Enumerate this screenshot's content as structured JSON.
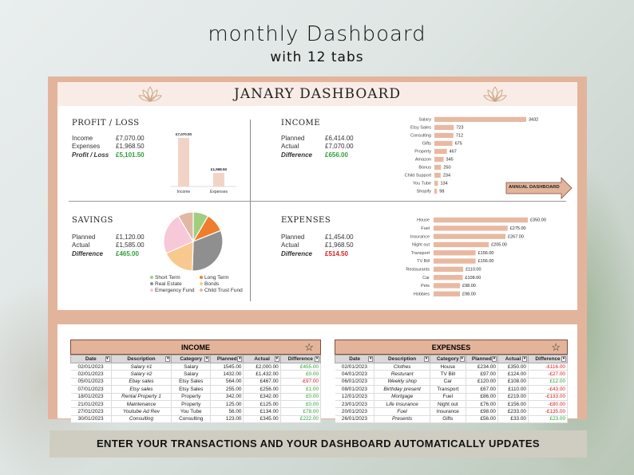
{
  "headline": "monthly Dashboard",
  "subline": "with 12 tabs",
  "dashboard_title": "JANARY DASHBOARD",
  "profit_loss": {
    "title": "PROFIT / LOSS",
    "rows": [
      {
        "label": "Income",
        "value": "£7,070.00"
      },
      {
        "label": "Expenses",
        "value": "£1,968.50"
      },
      {
        "label": "Profit / Loss",
        "value": "£5,101.50"
      }
    ],
    "chart": {
      "categories": [
        "Income",
        "Expenses"
      ],
      "values": [
        7070,
        1968.5
      ],
      "value_labels": [
        "£7,070.00",
        "£1,968.50"
      ],
      "color": "#f2d4c6"
    }
  },
  "income": {
    "title": "INCOME",
    "rows": [
      {
        "label": "Planned",
        "value": "£6,414.00"
      },
      {
        "label": "Actual",
        "value": "£7,070.00"
      },
      {
        "label": "Difference",
        "value": "£656.00"
      }
    ],
    "chart": {
      "categories": [
        "Salary",
        "Etsy Sales",
        "Consulting",
        "Gifts",
        "Property",
        "Amazon",
        "Bonus",
        "Child Support",
        "You Tube",
        "Shopify"
      ],
      "values": [
        3432,
        723,
        712,
        675,
        467,
        345,
        250,
        234,
        134,
        98
      ],
      "value_labels": [
        "3432",
        "723",
        "712",
        "675",
        "467",
        "345",
        "250",
        "234",
        "134",
        "98"
      ],
      "color": "#e8b9a1"
    },
    "annual_button": "ANNUAL DASHBOARD"
  },
  "savings": {
    "title": "SAVINGS",
    "rows": [
      {
        "label": "Planned",
        "value": "£1,120.00"
      },
      {
        "label": "Actual",
        "value": "£1,585.00"
      },
      {
        "label": "Difference",
        "value": "£465.00"
      }
    ],
    "chart": {
      "type": "pie",
      "slices": [
        {
          "name": "Short Term",
          "value": 8,
          "color": "#9ecf7e"
        },
        {
          "name": "Long Term",
          "value": 10,
          "color": "#ee7d2e"
        },
        {
          "name": "Real Estate",
          "value": 30,
          "color": "#8f8f8f"
        },
        {
          "name": "Bonds",
          "value": 17,
          "color": "#f8c98e"
        },
        {
          "name": "Emergency Fund",
          "value": 22,
          "color": "#f7c8d8"
        },
        {
          "name": "Child Trust Fund",
          "value": 8,
          "color": "#e0b8a5"
        }
      ],
      "legend": [
        "Short Term",
        "Long Term",
        "Real Estate",
        "Bonds",
        "Emergency Fund",
        "Child Trust Fund"
      ]
    }
  },
  "expenses": {
    "title": "EXPENSES",
    "rows": [
      {
        "label": "Planned",
        "value": "£1,454.00"
      },
      {
        "label": "Actual",
        "value": "£1,968.50"
      },
      {
        "label": "Difference",
        "value": "£514.50"
      }
    ],
    "chart": {
      "categories": [
        "House",
        "Fuel",
        "Insurance",
        "Night out",
        "Transport",
        "TV Bill",
        "Restaurants",
        "Car",
        "Pets",
        "Hobbies"
      ],
      "values": [
        350,
        275,
        267,
        205,
        156,
        156,
        110,
        108,
        98,
        98
      ],
      "value_labels": [
        "£350.00",
        "£275.00",
        "£267.00",
        "£205.00",
        "£156.00",
        "£156.00",
        "£110.00",
        "£108.00",
        "£98.00",
        "£98.00"
      ],
      "color": "#e8b9a1"
    }
  },
  "income_table": {
    "title": "INCOME",
    "headers": [
      "Date",
      "Description",
      "Category",
      "Planned",
      "Actual",
      "Difference"
    ],
    "rows": [
      [
        "02/01/2023",
        "Salary #1",
        "Salary",
        "1545.00",
        "£2,000.00",
        "£455.00"
      ],
      [
        "02/01/2023",
        "Salary #2",
        "Salary",
        "1432.00",
        "£1,432.00",
        "£0.00"
      ],
      [
        "05/01/2023",
        "Ebay sales",
        "Etsy Sales",
        "564.00",
        "£467.00",
        "-£97.00"
      ],
      [
        "07/01/2023",
        "Etsy sales",
        "Etsy Sales",
        "255.00",
        "£256.00",
        "£1.00"
      ],
      [
        "18/01/2023",
        "Rental Property 1",
        "Property",
        "342.00",
        "£342.00",
        "£0.00"
      ],
      [
        "21/01/2023",
        "Maintenance",
        "Property",
        "125.00",
        "£125.00",
        "£0.00"
      ],
      [
        "27/01/2023",
        "Youtube Ad Rev",
        "You Tube",
        "56.00",
        "£134.00",
        "£78.00"
      ],
      [
        "30/01/2023",
        "Consulting",
        "Consulting",
        "123.00",
        "£345.00",
        "£222.00"
      ]
    ]
  },
  "expenses_table": {
    "title": "EXPENSES",
    "headers": [
      "Date",
      "Description",
      "Category",
      "Planned",
      "Actual",
      "Difference"
    ],
    "rows": [
      [
        "02/01/2023",
        "Clothes",
        "House",
        "£234.00",
        "£350.00",
        "-£116.00"
      ],
      [
        "04/01/2023",
        "Resturant",
        "TV Bill",
        "£97.00",
        "£124.00",
        "-£27.00"
      ],
      [
        "06/01/2023",
        "Weekly shop",
        "Car",
        "£120.00",
        "£108.00",
        "£12.00"
      ],
      [
        "08/01/2023",
        "Birthday present",
        "Transport",
        "£67.00",
        "£110.00",
        "-£43.00"
      ],
      [
        "12/01/2023",
        "Mortgage",
        "Fuel",
        "£86.00",
        "£219.00",
        "-£133.00"
      ],
      [
        "23/01/2023",
        "Life Insurance",
        "Night out",
        "£76.00",
        "£156.00",
        "-£80.00"
      ],
      [
        "20/01/2023",
        "Fuel",
        "Insurance",
        "£98.00",
        "£233.00",
        "-£135.00"
      ],
      [
        "26/01/2023",
        "Presents",
        "Gifts",
        "£56.00",
        "£33.00",
        "£23.00"
      ]
    ]
  },
  "banner": "ENTER YOUR TRANSACTIONS AND YOUR DASHBOARD AUTOMATICALLY UPDATES",
  "colors": {
    "frame": "#e3b49c",
    "title_bar": "#f9ece6",
    "positive": "#2e9e3a",
    "negative": "#d62020"
  },
  "icons": [
    "lotus-icon",
    "star-icon",
    "arrow-icon",
    "filter-dropdown-icon"
  ]
}
